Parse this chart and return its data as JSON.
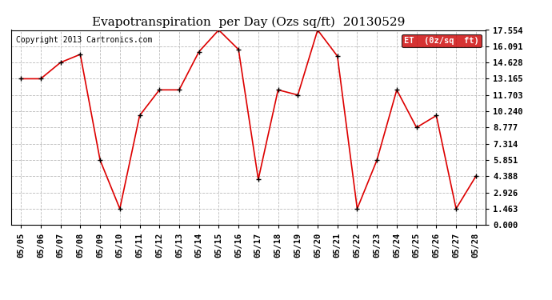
{
  "title": "Evapotranspiration  per Day (Ozs sq/ft)  20130529",
  "copyright": "Copyright 2013 Cartronics.com",
  "legend_label": "ET  (0z/sq  ft)",
  "dates": [
    "05/05",
    "05/06",
    "05/07",
    "05/08",
    "05/09",
    "05/10",
    "05/11",
    "05/12",
    "05/13",
    "05/14",
    "05/15",
    "05/16",
    "05/17",
    "05/18",
    "05/19",
    "05/20",
    "05/21",
    "05/22",
    "05/23",
    "05/24",
    "05/25",
    "05/26",
    "05/27",
    "05/28"
  ],
  "values": [
    13.165,
    13.165,
    14.628,
    15.36,
    5.851,
    1.463,
    9.85,
    12.165,
    12.165,
    15.6,
    17.554,
    15.8,
    4.1,
    12.165,
    11.703,
    17.554,
    15.2,
    1.463,
    5.851,
    12.165,
    8.777,
    9.85,
    1.463,
    4.388
  ],
  "yticks": [
    0.0,
    1.463,
    2.926,
    4.388,
    5.851,
    7.314,
    8.777,
    10.24,
    11.703,
    13.165,
    14.628,
    16.091,
    17.554
  ],
  "ylim": [
    0.0,
    17.554
  ],
  "line_color": "#dd0000",
  "marker_color": "#000000",
  "legend_bg": "#cc0000",
  "legend_text_color": "#ffffff",
  "bg_color": "#ffffff",
  "grid_color": "#bbbbbb",
  "title_fontsize": 11,
  "copyright_fontsize": 7,
  "tick_fontsize": 7.5,
  "legend_fontsize": 7.5
}
